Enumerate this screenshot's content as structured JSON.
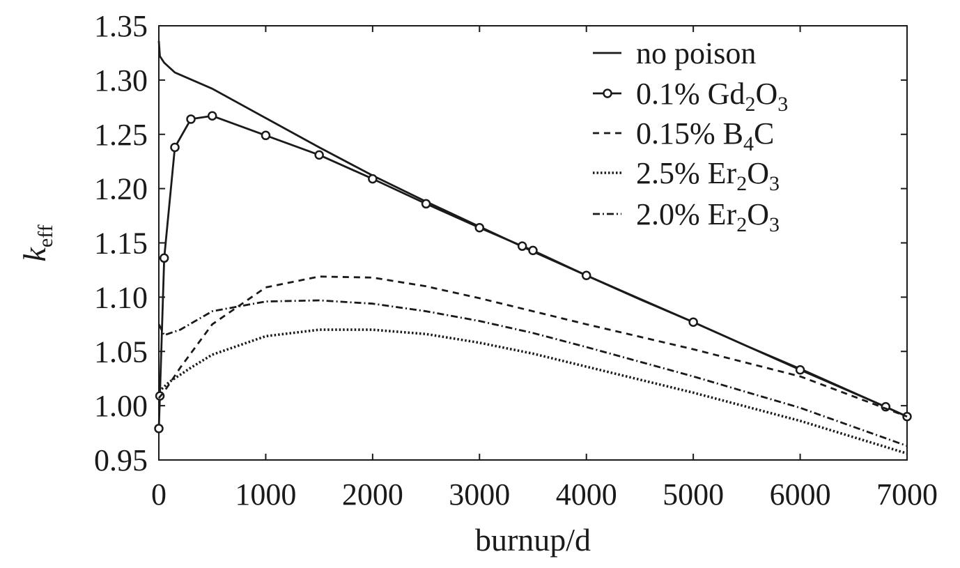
{
  "chart_data": {
    "type": "line",
    "xlabel": "burnup/d",
    "ylabel": {
      "main": "k",
      "sub": "eff"
    },
    "xlim": [
      0,
      7000
    ],
    "ylim": [
      0.95,
      1.35
    ],
    "xticks": [
      0,
      1000,
      2000,
      3000,
      4000,
      5000,
      6000,
      7000
    ],
    "xtick_labels": [
      "0",
      "1000",
      "2000",
      "3000",
      "4000",
      "5000",
      "6000",
      "7000"
    ],
    "yticks": [
      0.95,
      1.0,
      1.05,
      1.1,
      1.15,
      1.2,
      1.25,
      1.3,
      1.35
    ],
    "ytick_labels": [
      "0.95",
      "1.00",
      "1.05",
      "1.10",
      "1.15",
      "1.20",
      "1.25",
      "1.30",
      "1.35"
    ],
    "grid": false,
    "legend_position": "top-right",
    "series": [
      {
        "name": "no poison",
        "legend": [
          {
            "t": "no poison"
          }
        ],
        "style": "solid",
        "markers": false,
        "x": [
          0,
          10,
          50,
          150,
          500,
          1000,
          1500,
          2000,
          2500,
          3000,
          3500,
          4000,
          4500,
          5000,
          5500,
          6000,
          6500,
          7000
        ],
        "y": [
          1.336,
          1.322,
          1.316,
          1.307,
          1.292,
          1.265,
          1.238,
          1.212,
          1.188,
          1.165,
          1.142,
          1.12,
          1.098,
          1.077,
          1.055,
          1.034,
          1.012,
          0.99
        ]
      },
      {
        "name": "0.1% Gd2O3",
        "legend": [
          {
            "t": "0.1% Gd"
          },
          {
            "t": "2",
            "sub": true
          },
          {
            "t": "O"
          },
          {
            "t": "3",
            "sub": true
          }
        ],
        "style": "solid",
        "markers": true,
        "x": [
          0,
          10,
          50,
          150,
          300,
          500,
          1000,
          1500,
          2000,
          2500,
          3000,
          3400,
          3500,
          4000,
          5000,
          6000,
          6800,
          7000
        ],
        "y": [
          0.979,
          1.009,
          1.136,
          1.238,
          1.264,
          1.267,
          1.249,
          1.231,
          1.209,
          1.186,
          1.164,
          1.147,
          1.143,
          1.12,
          1.077,
          1.033,
          0.999,
          0.99
        ]
      },
      {
        "name": "0.15% B4C",
        "legend": [
          {
            "t": "0.15% B"
          },
          {
            "t": "4",
            "sub": true
          },
          {
            "t": "C"
          }
        ],
        "style": "dashed",
        "markers": false,
        "x": [
          0,
          50,
          200,
          500,
          1000,
          1500,
          2000,
          2500,
          3000,
          3500,
          4000,
          5000,
          6000,
          7000
        ],
        "y": [
          1.007,
          1.013,
          1.035,
          1.075,
          1.109,
          1.119,
          1.118,
          1.11,
          1.099,
          1.087,
          1.075,
          1.052,
          1.027,
          0.99
        ]
      },
      {
        "name": "2.5% Er2O3",
        "legend": [
          {
            "t": "2.5% Er"
          },
          {
            "t": "2",
            "sub": true
          },
          {
            "t": "O"
          },
          {
            "t": "3",
            "sub": true
          }
        ],
        "style": "dotted",
        "markers": false,
        "x": [
          0,
          100,
          300,
          500,
          1000,
          1500,
          2000,
          2500,
          3000,
          3500,
          4000,
          5000,
          6000,
          7000
        ],
        "y": [
          1.013,
          1.022,
          1.035,
          1.047,
          1.064,
          1.07,
          1.07,
          1.066,
          1.058,
          1.048,
          1.036,
          1.012,
          0.986,
          0.956
        ]
      },
      {
        "name": "2.0% Er2O3",
        "legend": [
          {
            "t": "2.0% Er"
          },
          {
            "t": "2",
            "sub": true
          },
          {
            "t": "O"
          },
          {
            "t": "3",
            "sub": true
          }
        ],
        "style": "dashdot",
        "markers": false,
        "x": [
          0,
          50,
          200,
          500,
          1000,
          1500,
          2000,
          2500,
          3000,
          3500,
          4000,
          5000,
          6000,
          7000
        ],
        "y": [
          1.075,
          1.065,
          1.07,
          1.087,
          1.096,
          1.097,
          1.094,
          1.087,
          1.078,
          1.067,
          1.054,
          1.027,
          0.998,
          0.963
        ]
      }
    ]
  }
}
